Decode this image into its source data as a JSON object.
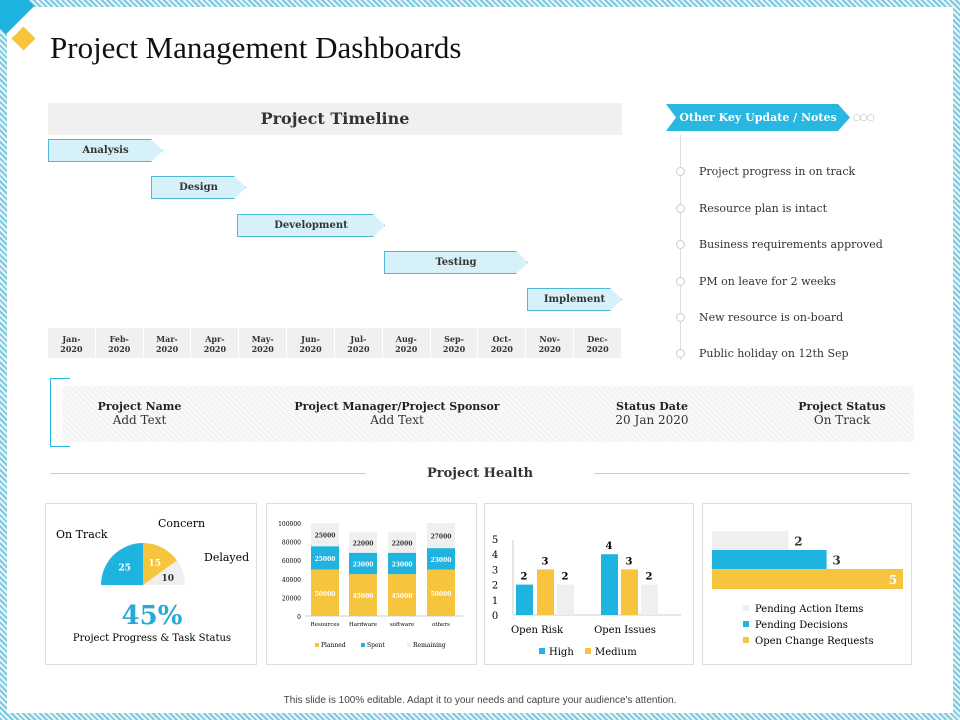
{
  "title": "Project Management Dashboards",
  "timeline": {
    "title": "Project Timeline",
    "tasks": [
      {
        "label": "Analysis"
      },
      {
        "label": "Design"
      },
      {
        "label": "Development"
      },
      {
        "label": "Testing"
      },
      {
        "label": "Implement"
      }
    ],
    "months": [
      "Jan-\n2020",
      "Feb-\n2020",
      "Mar-\n2020",
      "Apr-\n2020",
      "May-\n2020",
      "Jun-\n2020",
      "Jul-\n2020",
      "Aug-\n2020",
      "Sep-\n2020",
      "Oct-\n2020",
      "Nov-\n2020",
      "Dec-\n2020"
    ]
  },
  "notes": {
    "title": "Other Key Update / Notes",
    "items": [
      "Project progress in on track",
      "Resource plan is intact",
      "Business requirements approved",
      "PM on leave for 2 weeks",
      "New resource is on-board",
      "Public holiday on 12th Sep"
    ]
  },
  "info": [
    {
      "label": "Project Name",
      "value": "Add Text"
    },
    {
      "label": "Project Manager/Project Sponsor",
      "value": "Add Text"
    },
    {
      "label": "Status Date",
      "value": "20 Jan 2020"
    },
    {
      "label": "Project Status",
      "value": "On Track"
    }
  ],
  "health_title": "Project Health",
  "colors": {
    "blue": "#1fb3e0",
    "yellow": "#f7c43d",
    "grey": "#efefef"
  },
  "gauge": {
    "labels": [
      "On Track",
      "Concern",
      "Delayed"
    ],
    "values": [
      25,
      15,
      10
    ],
    "percent": "45%",
    "caption": "Project Progress & Task Status"
  },
  "chart_data": [
    {
      "type": "bar",
      "stacked": true,
      "categories": [
        "Resources",
        "Hardware",
        "software",
        "others"
      ],
      "ylim": [
        0,
        100000
      ],
      "yticks": [
        "0",
        "20000",
        "40000",
        "60000",
        "80000",
        "100000"
      ],
      "series": [
        {
          "name": "Planned",
          "values": [
            50000,
            45000,
            45000,
            50000
          ]
        },
        {
          "name": "Spent",
          "values": [
            25000,
            23000,
            23000,
            23000
          ]
        },
        {
          "name": "Remaining",
          "values": [
            25000,
            22000,
            22000,
            27000
          ]
        }
      ],
      "legend": "bottom"
    },
    {
      "type": "bar",
      "categories": [
        "Open Risk",
        "Open Issues"
      ],
      "ylim": [
        0,
        5
      ],
      "yticks": [
        "0",
        "1",
        "2",
        "3",
        "4",
        "5"
      ],
      "series": [
        {
          "name": "High",
          "values": [
            2,
            4
          ]
        },
        {
          "name": "Medium",
          "values": [
            3,
            3
          ]
        },
        {
          "values": [
            2,
            2
          ]
        }
      ],
      "legend": "bottom"
    },
    {
      "type": "bar",
      "orientation": "horizontal",
      "categories": [
        "Pending Action Items",
        "Pending Decisions",
        "Open Change Requests"
      ],
      "values": [
        2,
        3,
        5
      ],
      "legend": "bottom"
    }
  ],
  "footer": "This slide is 100% editable.  Adapt it to your needs and capture your audience's attention."
}
